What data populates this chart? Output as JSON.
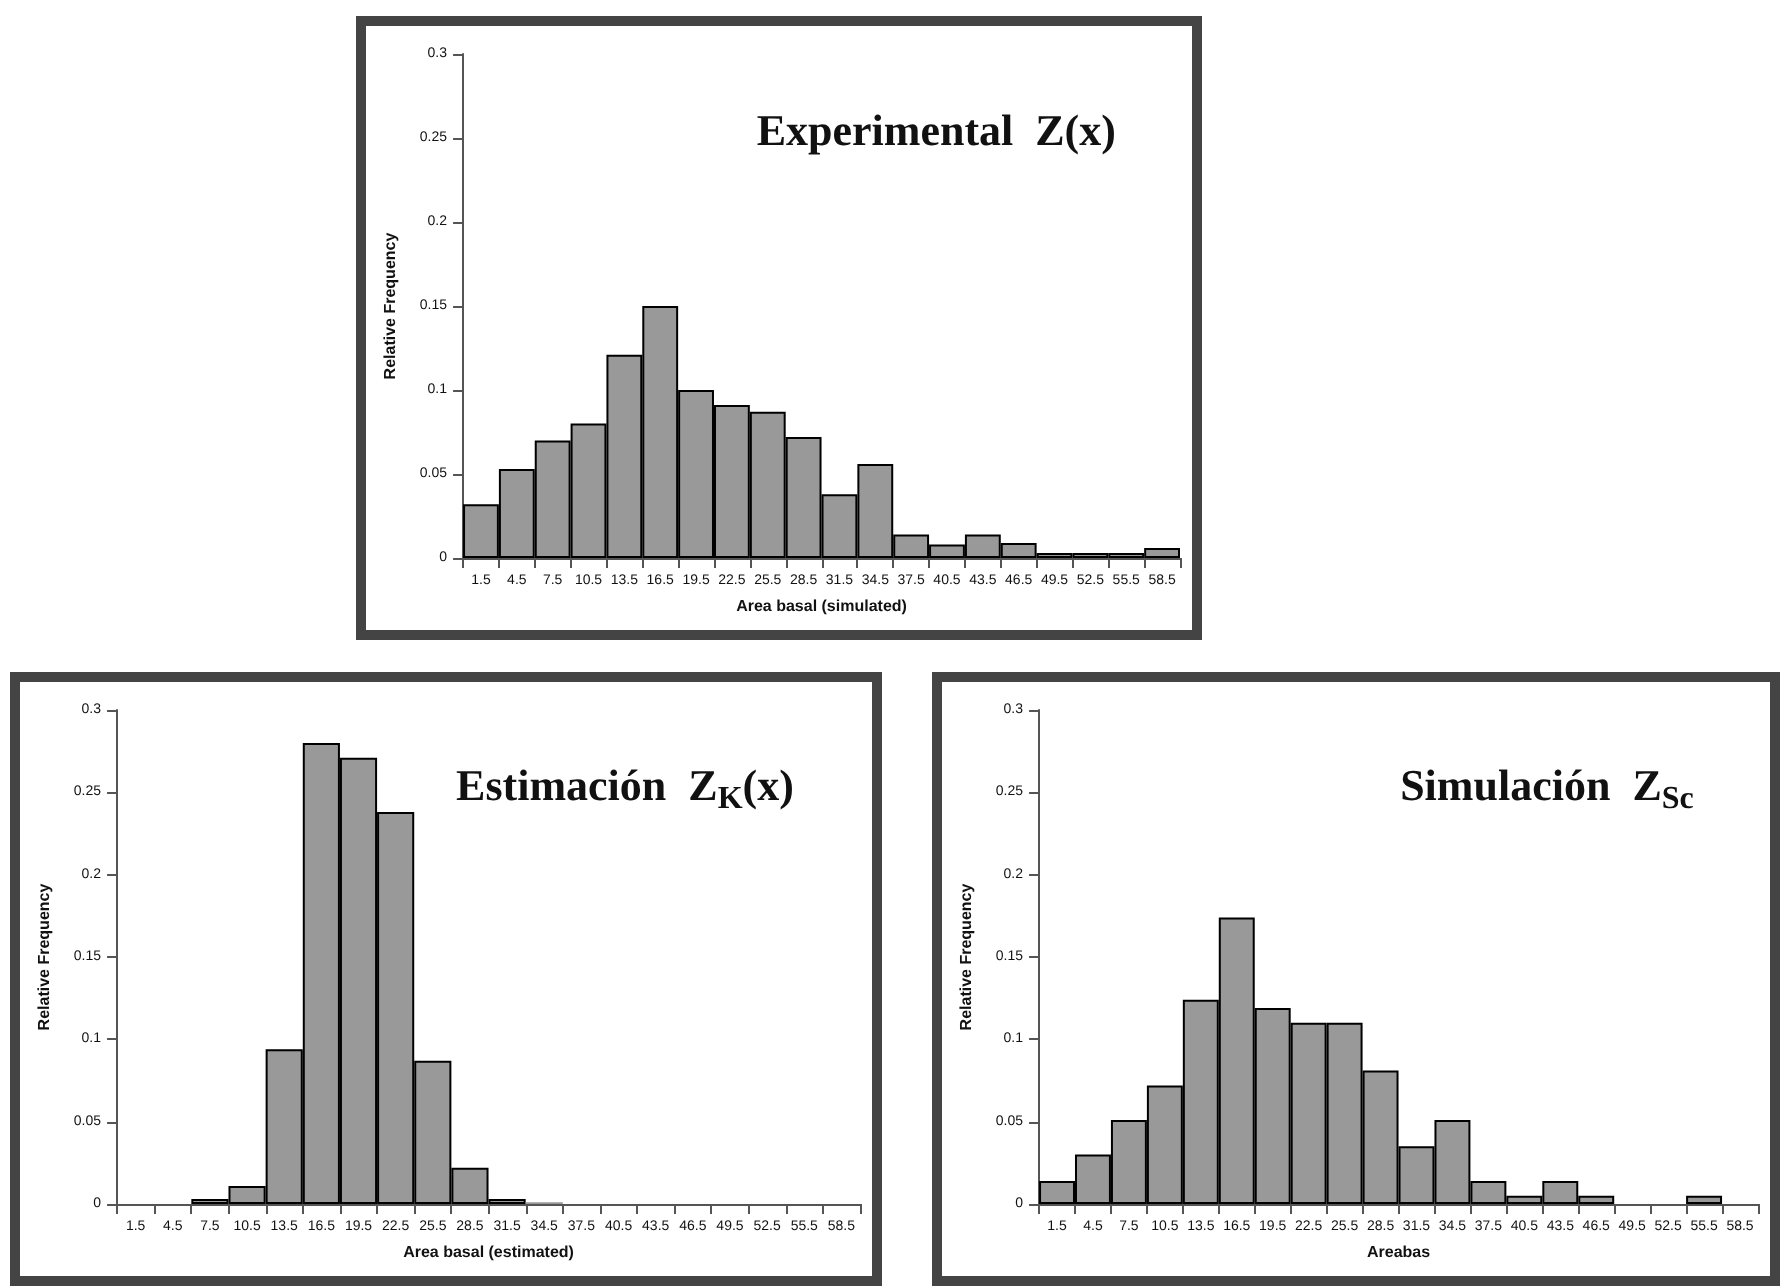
{
  "chart_data": [
    {
      "type": "bar",
      "title": "Experimental  Z(x)",
      "xlabel": "Area basal (simulated)",
      "ylabel": "Relative Frequency",
      "categories": [
        "1.5",
        "4.5",
        "7.5",
        "10.5",
        "13.5",
        "16.5",
        "19.5",
        "22.5",
        "25.5",
        "28.5",
        "31.5",
        "34.5",
        "37.5",
        "40.5",
        "43.5",
        "46.5",
        "49.5",
        "52.5",
        "55.5",
        "58.5"
      ],
      "values": [
        0.032,
        0.053,
        0.07,
        0.08,
        0.121,
        0.15,
        0.1,
        0.091,
        0.087,
        0.072,
        0.038,
        0.056,
        0.014,
        0.008,
        0.014,
        0.009,
        0.003,
        0.003,
        0.003,
        0.006
      ],
      "color": "#999999",
      "ylim": [
        0,
        0.3
      ],
      "yticks": [
        0,
        0.05,
        0.1,
        0.15,
        0.2,
        0.25,
        0.3
      ],
      "grid": false
    },
    {
      "type": "bar",
      "title": "Estimación  Z$_{K}$(x)",
      "xlabel": "Area basal (estimated)",
      "ylabel": "Relative Frequency",
      "categories": [
        "1.5",
        "4.5",
        "7.5",
        "10.5",
        "13.5",
        "16.5",
        "19.5",
        "22.5",
        "25.5",
        "28.5",
        "31.5",
        "34.5",
        "37.5",
        "40.5",
        "43.5",
        "46.5",
        "49.5",
        "52.5",
        "55.5",
        "58.5"
      ],
      "values": [
        0,
        0,
        0.003,
        0.011,
        0.094,
        0.28,
        0.271,
        0.238,
        0.087,
        0.022,
        0.003,
        0.001,
        0,
        0,
        0,
        0,
        0,
        0,
        0,
        0
      ],
      "color": "#999999",
      "ylim": [
        0,
        0.3
      ],
      "yticks": [
        0,
        0.05,
        0.1,
        0.15,
        0.2,
        0.25,
        0.3
      ],
      "grid": false
    },
    {
      "type": "bar",
      "title": "Simulación  Z$_{Sc}$",
      "xlabel": "Areabas",
      "ylabel": "Relative Frequency",
      "categories": [
        "1.5",
        "4.5",
        "7.5",
        "10.5",
        "13.5",
        "16.5",
        "19.5",
        "22.5",
        "25.5",
        "28.5",
        "31.5",
        "34.5",
        "37.5",
        "40.5",
        "43.5",
        "46.5",
        "49.5",
        "52.5",
        "55.5",
        "58.5"
      ],
      "values": [
        0.014,
        0.03,
        0.051,
        0.072,
        0.124,
        0.174,
        0.119,
        0.11,
        0.11,
        0.081,
        0.035,
        0.051,
        0.014,
        0.005,
        0.014,
        0.005,
        0,
        0,
        0.005,
        0
      ],
      "color": "#999999",
      "ylim": [
        0,
        0.3
      ],
      "yticks": [
        0,
        0.05,
        0.1,
        0.15,
        0.2,
        0.25,
        0.3
      ],
      "grid": false
    }
  ]
}
